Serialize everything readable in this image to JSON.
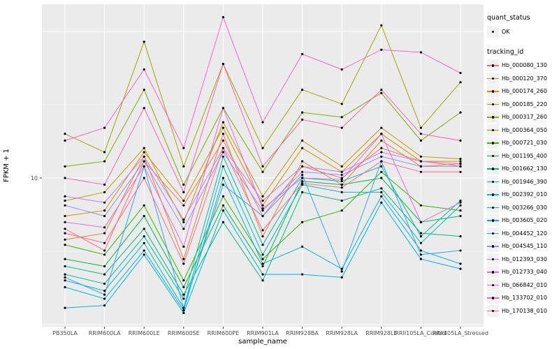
{
  "figure": {
    "y_axis_title": "FPKM + 1",
    "x_axis_title": "sample_name",
    "y_tick_label": "10"
  },
  "legend": {
    "quant_status_title": "quant_status",
    "ok_label": "OK",
    "tracking_title": "tracking_id"
  },
  "chart_data": {
    "type": "line",
    "yscale": "log10",
    "title": "",
    "xlabel": "sample_name",
    "ylabel": "FPKM + 1",
    "ylim": [
      0.97,
      150
    ],
    "y_major_gridlines": [
      1,
      10,
      100
    ],
    "y_minor_gridlines": [
      3.162,
      31.62
    ],
    "y_labeled_tick": 10,
    "panel_bg": "#EBEBEB",
    "grid_color": "#FFFFFF",
    "point_color": "#000000",
    "legend_key_bg": "#F2F2F2",
    "quant_status": "OK",
    "x_categories": [
      "PB350LA",
      "RRIM600LA",
      "RRIM600LE",
      "RRIM600SE",
      "RRIM600PE",
      "RRIM901LA",
      "RRIM928BA",
      "RRIM928LA",
      "RRIM928LE",
      "RRII105LA_Control",
      "RRII105LA_Stressed"
    ],
    "series": [
      {
        "name": "Hb_000080_130",
        "color": "#F8766D",
        "values": [
          4.5,
          3.2,
          13,
          6.5,
          18,
          5.5,
          12,
          10,
          16,
          13,
          12
        ]
      },
      {
        "name": "Hb_000120_370",
        "color": "#EA8331",
        "values": [
          3.8,
          4.2,
          14,
          2.8,
          20,
          4.0,
          13,
          9,
          18,
          12,
          12.5
        ]
      },
      {
        "name": "Hb_000174_260",
        "color": "#D89000",
        "values": [
          5.5,
          6.0,
          15,
          7.0,
          22,
          6.5,
          16,
          11,
          20,
          13,
          13
        ]
      },
      {
        "name": "Hb_000185_220",
        "color": "#C09B00",
        "values": [
          7,
          8,
          16,
          5,
          24,
          7.5,
          18,
          12,
          22,
          14,
          13.5
        ]
      },
      {
        "name": "Hb_000317_260",
        "color": "#A3A500",
        "values": [
          20,
          15,
          85,
          12,
          60,
          16,
          40,
          32,
          110,
          22,
          45
        ]
      },
      {
        "name": "Hb_000364_050",
        "color": "#7CAE00",
        "values": [
          12,
          13,
          40,
          9,
          30,
          11,
          28,
          26,
          38,
          18,
          28
        ]
      },
      {
        "name": "Hb_000721_030",
        "color": "#39B600",
        "values": [
          3.5,
          3.0,
          6.5,
          2.0,
          7.5,
          2.8,
          5.0,
          6.0,
          11,
          6.5,
          6.0
        ]
      },
      {
        "name": "Hb_001195_400",
        "color": "#00BB4E",
        "values": [
          2.8,
          2.5,
          5.5,
          1.8,
          6.5,
          2.5,
          9.5,
          9.0,
          10,
          5.0,
          5.5
        ]
      },
      {
        "name": "Hb_001662_130",
        "color": "#00BF7D",
        "values": [
          2.5,
          2.2,
          4.5,
          1.6,
          5.0,
          2.0,
          8.0,
          7.0,
          8.5,
          4.2,
          4.0
        ]
      },
      {
        "name": "Hb_001946_390",
        "color": "#00C1A3",
        "values": [
          2.2,
          1.9,
          4.0,
          1.5,
          14,
          3.5,
          10,
          9.5,
          12,
          4.0,
          7.0
        ]
      },
      {
        "name": "Hb_002392_010",
        "color": "#00BFC4",
        "values": [
          2.0,
          1.7,
          3.6,
          1.3,
          12,
          3.0,
          9.0,
          8.0,
          8.0,
          3.6,
          6.5
        ]
      },
      {
        "name": "Hb_003266_030",
        "color": "#00BAE0",
        "values": [
          1.8,
          1.5,
          3.2,
          1.25,
          10,
          2.6,
          3.4,
          2.4,
          7.5,
          3.2,
          2.6
        ]
      },
      {
        "name": "Hb_003605_020",
        "color": "#00B0F6",
        "values": [
          1.3,
          1.35,
          3.0,
          1.2,
          6.0,
          2.2,
          2.2,
          2.1,
          6.8,
          2.8,
          2.4
        ]
      },
      {
        "name": "Hb_004452_120",
        "color": "#35A2FF",
        "values": [
          2.1,
          1.6,
          12,
          1.3,
          9.0,
          5.5,
          10.5,
          2.3,
          13,
          3.0,
          3.2
        ]
      },
      {
        "name": "Hb_004545_110",
        "color": "#9590FF",
        "values": [
          6.5,
          5.5,
          13,
          4.5,
          15,
          6.0,
          11,
          10.5,
          14,
          12,
          12
        ]
      },
      {
        "name": "Hb_012393_030",
        "color": "#C77CFF",
        "values": [
          7.5,
          6.8,
          14,
          5.2,
          16,
          7.0,
          12,
          11,
          15,
          13,
          12.5
        ]
      },
      {
        "name": "Hb_012733_040",
        "color": "#E76BF3",
        "values": [
          5.0,
          4.6,
          12,
          3.4,
          30,
          6.2,
          10,
          9.8,
          20,
          5.0,
          6.8
        ]
      },
      {
        "name": "Hb_066842_010",
        "color": "#FA62DB",
        "values": [
          18,
          22,
          55,
          16,
          125,
          24,
          70,
          55,
          75,
          72,
          52
        ]
      },
      {
        "name": "Hb_133702_010",
        "color": "#FF62BC",
        "values": [
          10,
          9,
          30,
          8,
          60,
          12,
          25,
          22,
          40,
          20,
          18
        ]
      },
      {
        "name": "Hb_170138_010",
        "color": "#FF6A98",
        "values": [
          4.2,
          3.6,
          10,
          2.6,
          16,
          4.4,
          9.2,
          8.6,
          13,
          11,
          11
        ]
      }
    ]
  }
}
